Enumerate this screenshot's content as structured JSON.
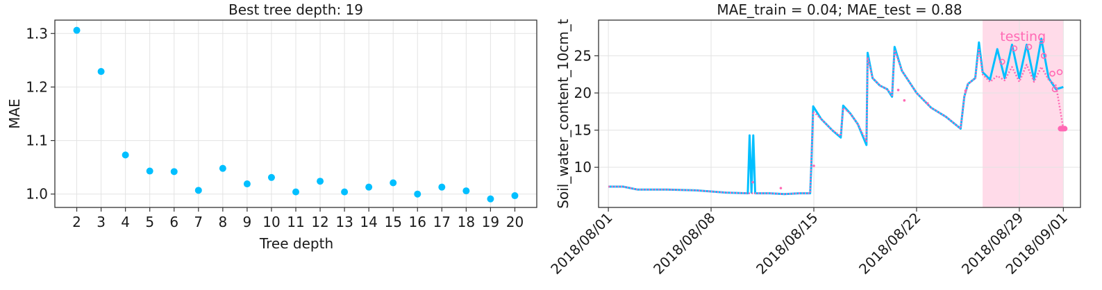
{
  "chart_data": [
    {
      "type": "scatter",
      "title": "Best tree depth: 19",
      "xlabel": "Tree depth",
      "ylabel": "MAE",
      "x": [
        2,
        3,
        4,
        5,
        6,
        7,
        8,
        9,
        10,
        11,
        12,
        13,
        14,
        15,
        16,
        17,
        18,
        19,
        20
      ],
      "y": [
        1.306,
        1.229,
        1.073,
        1.043,
        1.042,
        1.007,
        1.048,
        1.019,
        1.031,
        1.004,
        1.024,
        1.004,
        1.013,
        1.021,
        1.0,
        1.013,
        1.006,
        0.991,
        0.997
      ],
      "xlim": [
        1.1,
        20.9
      ],
      "ylim": [
        0.975,
        1.325
      ],
      "yticks": [
        "1.0",
        "1.1",
        "1.2",
        "1.3"
      ],
      "xticks": [
        "2",
        "3",
        "4",
        "5",
        "6",
        "7",
        "8",
        "9",
        "10",
        "11",
        "12",
        "13",
        "14",
        "15",
        "16",
        "17",
        "18",
        "19",
        "20"
      ],
      "grid": true,
      "color": "#00bfff"
    },
    {
      "type": "line",
      "title": "MAE_train = 0.04; MAE_test = 0.88",
      "xlabel": "",
      "ylabel": "Soil_water_content_10cm_t",
      "xlim": [
        "2018-07-31T08:00",
        "2018-09-02T04:00"
      ],
      "ylim": [
        4.6,
        29.8
      ],
      "xticks": [
        "2018/08/01",
        "2018/08/08",
        "2018/08/15",
        "2018/08/22",
        "2018/08/29",
        "2018/09/01"
      ],
      "yticks": [
        "10",
        "15",
        "20",
        "25"
      ],
      "grid": true,
      "testing_region": {
        "start": "2018-08-26T12:00",
        "end": "2018-09-01",
        "label": "testing",
        "color": "#ffdbe9"
      },
      "series": [
        {
          "role": "observed",
          "color": "#00bfff",
          "points": [
            [
              "2018-08-01T00:00",
              7.4
            ],
            [
              "2018-08-02T00:00",
              7.4
            ],
            [
              "2018-08-03T00:00",
              7.0
            ],
            [
              "2018-08-05T00:00",
              7.0
            ],
            [
              "2018-08-07T00:00",
              6.9
            ],
            [
              "2018-08-09T00:00",
              6.6
            ],
            [
              "2018-08-10T12:00",
              6.5
            ],
            [
              "2018-08-10T15:00",
              14.3
            ],
            [
              "2018-08-10T18:00",
              6.6
            ],
            [
              "2018-08-10T21:00",
              14.3
            ],
            [
              "2018-08-11T00:00",
              6.5
            ],
            [
              "2018-08-12T00:00",
              6.5
            ],
            [
              "2018-08-13T00:00",
              6.4
            ],
            [
              "2018-08-14T00:00",
              6.5
            ],
            [
              "2018-08-14T18:00",
              6.5
            ],
            [
              "2018-08-14T20:00",
              10.5
            ],
            [
              "2018-08-14T23:00",
              18.2
            ],
            [
              "2018-08-15T12:00",
              16.5
            ],
            [
              "2018-08-16T06:00",
              15.0
            ],
            [
              "2018-08-16T20:00",
              14.0
            ],
            [
              "2018-08-17T00:00",
              18.3
            ],
            [
              "2018-08-17T12:00",
              17.2
            ],
            [
              "2018-08-18T00:00",
              15.8
            ],
            [
              "2018-08-18T14:00",
              13.0
            ],
            [
              "2018-08-18T16:00",
              25.4
            ],
            [
              "2018-08-19T00:00",
              22.0
            ],
            [
              "2018-08-19T12:00",
              21.0
            ],
            [
              "2018-08-20T00:00",
              20.5
            ],
            [
              "2018-08-20T08:00",
              19.5
            ],
            [
              "2018-08-20T12:00",
              26.2
            ],
            [
              "2018-08-21T00:00",
              23.0
            ],
            [
              "2018-08-22T00:00",
              20.0
            ],
            [
              "2018-08-23T00:00",
              18.0
            ],
            [
              "2018-08-24T00:00",
              16.8
            ],
            [
              "2018-08-25T00:00",
              15.2
            ],
            [
              "2018-08-25T06:00",
              19.5
            ],
            [
              "2018-08-25T12:00",
              21.2
            ],
            [
              "2018-08-26T00:00",
              22.0
            ],
            [
              "2018-08-26T06:00",
              26.8
            ],
            [
              "2018-08-26T12:00",
              22.8
            ],
            [
              "2018-08-27T00:00",
              21.8
            ],
            [
              "2018-08-27T12:00",
              25.9
            ],
            [
              "2018-08-28T00:00",
              22.0
            ],
            [
              "2018-08-28T12:00",
              26.5
            ],
            [
              "2018-08-29T00:00",
              22.0
            ],
            [
              "2018-08-29T12:00",
              26.5
            ],
            [
              "2018-08-30T00:00",
              21.8
            ],
            [
              "2018-08-30T12:00",
              27.3
            ],
            [
              "2018-08-31T00:00",
              22.0
            ],
            [
              "2018-08-31T12:00",
              20.5
            ],
            [
              "2018-09-01T00:00",
              20.8
            ]
          ]
        },
        {
          "role": "predicted",
          "color": "#ff69b4",
          "points": [
            [
              "2018-08-01T00:00",
              7.4
            ],
            [
              "2018-08-02T00:00",
              7.4
            ],
            [
              "2018-08-03T00:00",
              7.0
            ],
            [
              "2018-08-05T00:00",
              7.0
            ],
            [
              "2018-08-07T00:00",
              6.9
            ],
            [
              "2018-08-09T00:00",
              6.6
            ],
            [
              "2018-08-10T12:00",
              6.5
            ],
            [
              "2018-08-11T00:00",
              6.5
            ],
            [
              "2018-08-12T00:00",
              6.5
            ],
            [
              "2018-08-13T00:00",
              6.4
            ],
            [
              "2018-08-14T00:00",
              6.5
            ],
            [
              "2018-08-14T18:00",
              6.5
            ],
            [
              "2018-08-14T23:00",
              17.5
            ],
            [
              "2018-08-15T12:00",
              16.5
            ],
            [
              "2018-08-16T06:00",
              15.0
            ],
            [
              "2018-08-16T20:00",
              14.2
            ],
            [
              "2018-08-17T00:00",
              18.0
            ],
            [
              "2018-08-17T12:00",
              17.2
            ],
            [
              "2018-08-18T00:00",
              15.8
            ],
            [
              "2018-08-18T14:00",
              13.5
            ],
            [
              "2018-08-18T16:00",
              24.8
            ],
            [
              "2018-08-19T00:00",
              22.0
            ],
            [
              "2018-08-19T12:00",
              21.0
            ],
            [
              "2018-08-20T00:00",
              20.5
            ],
            [
              "2018-08-20T08:00",
              19.7
            ],
            [
              "2018-08-20T12:00",
              25.8
            ],
            [
              "2018-08-21T00:00",
              23.0
            ],
            [
              "2018-08-22T00:00",
              20.0
            ],
            [
              "2018-08-23T00:00",
              18.0
            ],
            [
              "2018-08-24T00:00",
              16.8
            ],
            [
              "2018-08-25T00:00",
              15.2
            ],
            [
              "2018-08-25T06:00",
              19.5
            ],
            [
              "2018-08-25T12:00",
              21.2
            ],
            [
              "2018-08-26T00:00",
              22.0
            ],
            [
              "2018-08-26T06:00",
              26.0
            ],
            [
              "2018-08-26T12:00",
              22.5
            ],
            [
              "2018-08-27T00:00",
              21.5
            ],
            [
              "2018-08-27T12:00",
              22.3
            ],
            [
              "2018-08-28T00:00",
              21.7
            ],
            [
              "2018-08-28T12:00",
              23.5
            ],
            [
              "2018-08-29T00:00",
              21.5
            ],
            [
              "2018-08-29T12:00",
              23.8
            ],
            [
              "2018-08-30T00:00",
              21.5
            ],
            [
              "2018-08-30T12:00",
              23.5
            ],
            [
              "2018-08-31T00:00",
              21.8
            ],
            [
              "2018-08-31T12:00",
              21.0
            ],
            [
              "2018-09-01T00:00",
              15.2
            ]
          ],
          "outliers": [
            [
              "2018-08-10T20:00",
              8.0
            ],
            [
              "2018-08-12T18:00",
              7.2
            ],
            [
              "2018-08-15T00:00",
              10.2
            ],
            [
              "2018-08-20T18:00",
              20.4
            ],
            [
              "2018-08-21T04:00",
              19.0
            ],
            [
              "2018-08-22T18:00",
              18.6
            ],
            [
              "2018-08-25T08:00",
              20.3
            ],
            [
              "2018-08-27T20:00",
              24.2
            ],
            [
              "2018-08-28T16:00",
              26.0
            ],
            [
              "2018-08-29T16:00",
              26.2
            ],
            [
              "2018-08-30T16:00",
              25.0
            ],
            [
              "2018-08-31T06:00",
              22.6
            ],
            [
              "2018-08-31T10:00",
              20.5
            ],
            [
              "2018-08-31T18:00",
              22.8
            ]
          ]
        }
      ]
    }
  ]
}
